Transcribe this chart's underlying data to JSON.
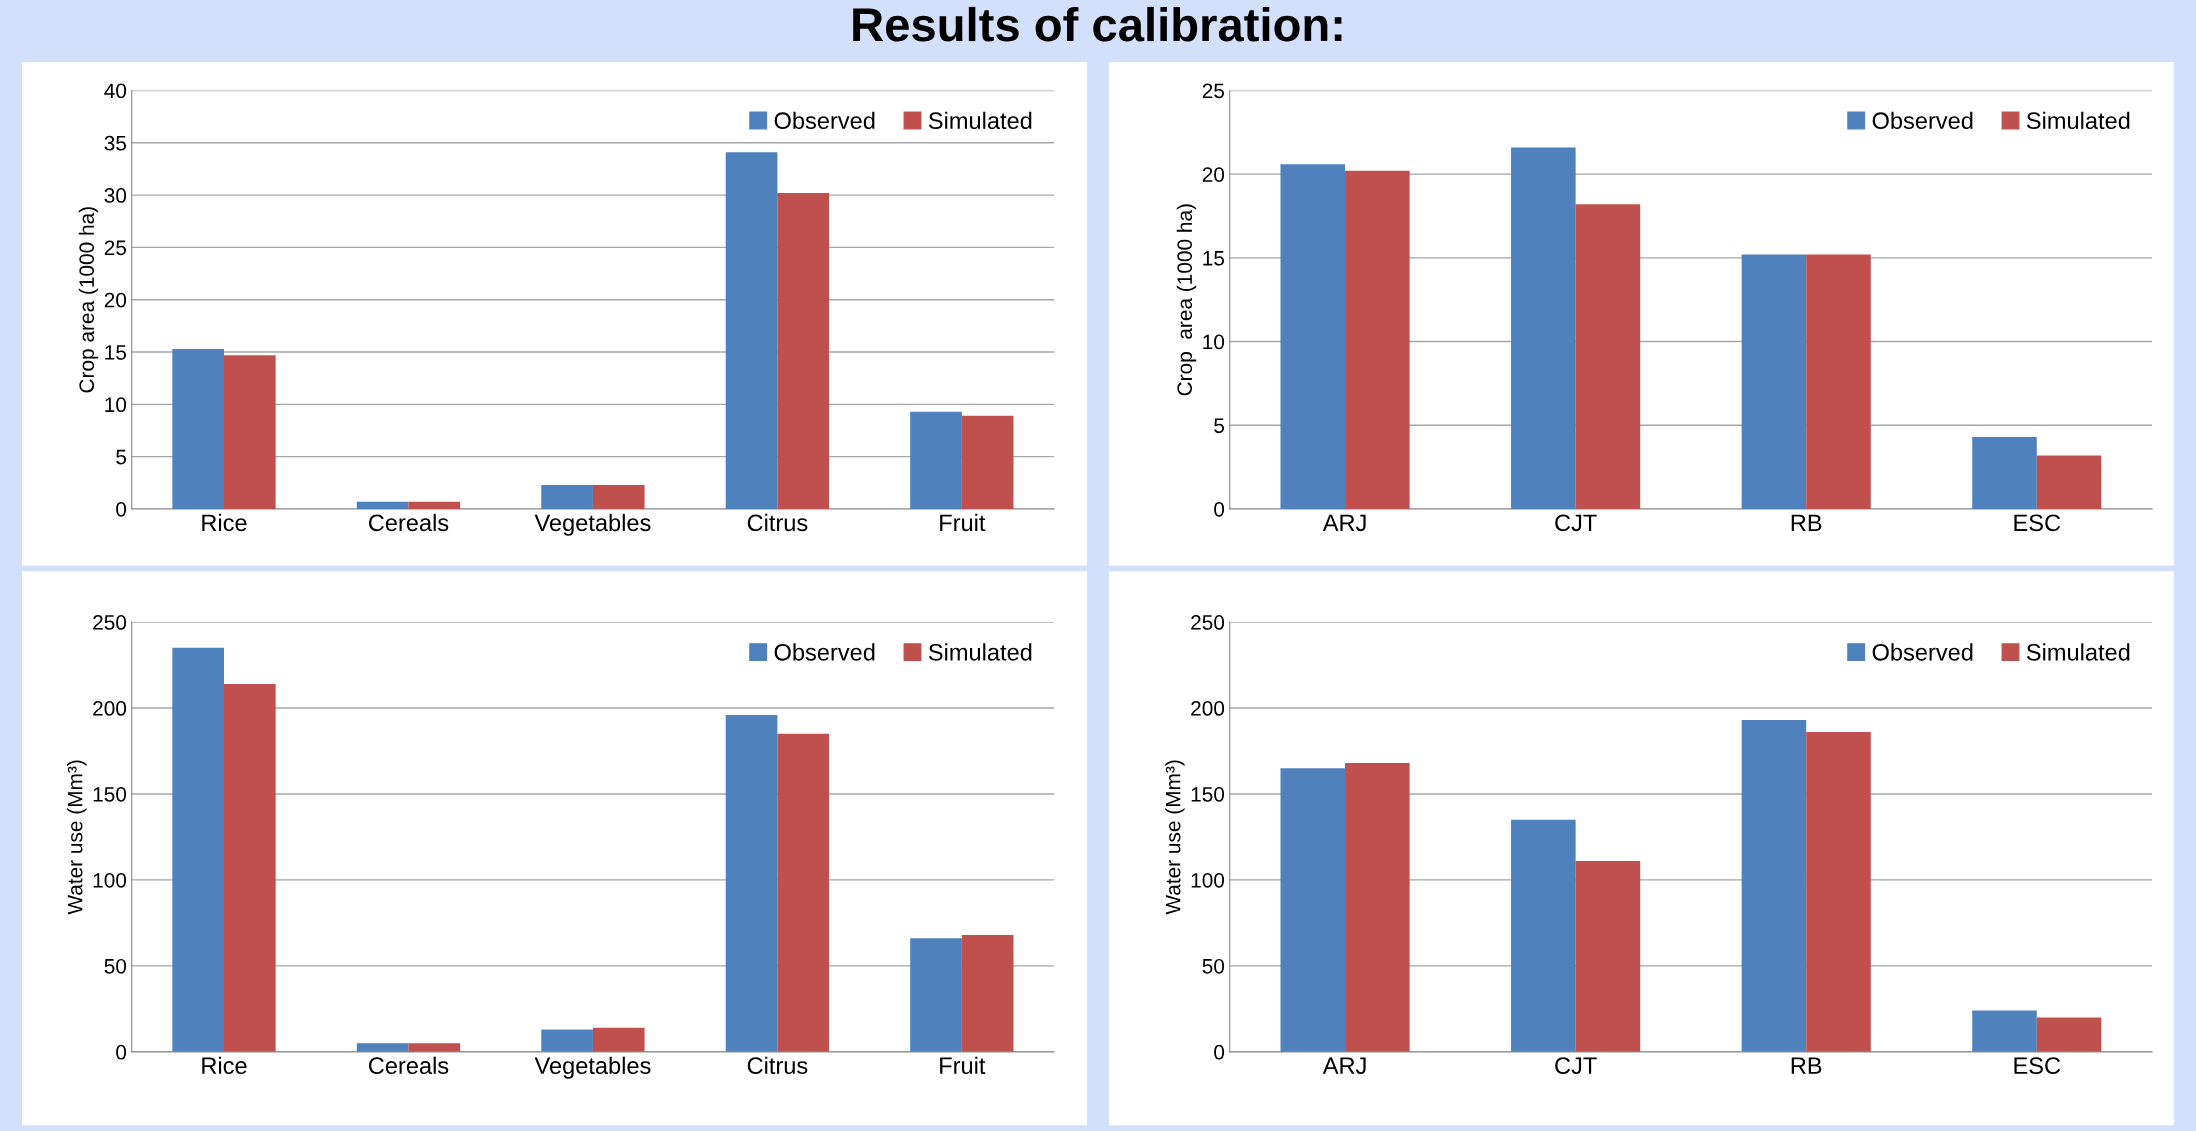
{
  "chart_data": [
    {
      "type": "bar",
      "title": "Results of calibration:",
      "ylabel": "Crop area (1000 ha)",
      "categories": [
        "Rice",
        "Cereals",
        "Vegetables",
        "Citrus",
        "Fruit"
      ],
      "series": [
        {
          "name": "Observed",
          "color": "#4f81bd",
          "values": [
            15.3,
            0.7,
            2.3,
            34.1,
            9.3
          ]
        },
        {
          "name": "Simulated",
          "color": "#c0504d",
          "values": [
            14.7,
            0.7,
            2.3,
            30.2,
            8.9
          ]
        }
      ],
      "ylim": [
        0,
        40
      ],
      "yticks": [
        0,
        5,
        10,
        15,
        20,
        25,
        30,
        35,
        40
      ],
      "grid": "y",
      "legend": "top right"
    },
    {
      "type": "bar",
      "ylabel": "Crop  area (1000 ha)",
      "categories": [
        "ARJ",
        "CJT",
        "RB",
        "ESC"
      ],
      "series": [
        {
          "name": "Observed",
          "color": "#4f81bd",
          "values": [
            20.6,
            21.6,
            15.2,
            4.3
          ]
        },
        {
          "name": "Simulated",
          "color": "#c0504d",
          "values": [
            20.2,
            18.2,
            15.2,
            3.2
          ]
        }
      ],
      "ylim": [
        0,
        25
      ],
      "yticks": [
        0,
        5,
        10,
        15,
        20,
        25
      ],
      "grid": "y",
      "legend": "top right"
    },
    {
      "type": "bar",
      "ylabel": "Water use (Mm³)",
      "categories": [
        "Rice",
        "Cereals",
        "Vegetables",
        "Citrus",
        "Fruit"
      ],
      "series": [
        {
          "name": "Observed",
          "color": "#4f81bd",
          "values": [
            235,
            5,
            13,
            196,
            66
          ]
        },
        {
          "name": "Simulated",
          "color": "#c0504d",
          "values": [
            214,
            5,
            14,
            185,
            68
          ]
        }
      ],
      "ylim": [
        0,
        250
      ],
      "yticks": [
        0,
        50,
        100,
        150,
        200,
        250
      ],
      "grid": "y",
      "legend": "top right"
    },
    {
      "type": "bar",
      "ylabel": "Water use (Mm³)",
      "categories": [
        "ARJ",
        "CJT",
        "RB",
        "ESC"
      ],
      "series": [
        {
          "name": "Observed",
          "color": "#4f81bd",
          "values": [
            165,
            135,
            193,
            24
          ]
        },
        {
          "name": "Simulated",
          "color": "#c0504d",
          "values": [
            168,
            111,
            186,
            20
          ]
        }
      ],
      "ylim": [
        0,
        250
      ],
      "yticks": [
        0,
        50,
        100,
        150,
        200,
        250
      ],
      "grid": "y",
      "legend": "top right"
    }
  ]
}
